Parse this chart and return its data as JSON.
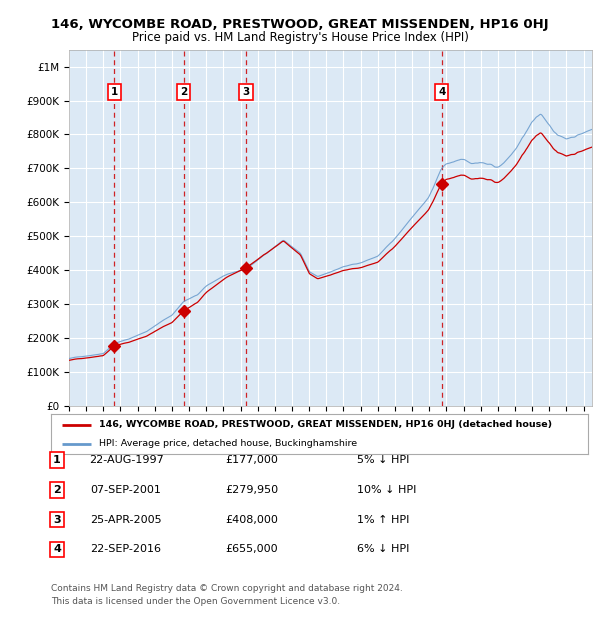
{
  "title": "146, WYCOMBE ROAD, PRESTWOOD, GREAT MISSENDEN, HP16 0HJ",
  "subtitle": "Price paid vs. HM Land Registry's House Price Index (HPI)",
  "ylabel_ticks": [
    "£0",
    "£100K",
    "£200K",
    "£300K",
    "£400K",
    "£500K",
    "£600K",
    "£700K",
    "£800K",
    "£900K",
    "£1M"
  ],
  "ytick_values": [
    0,
    100000,
    200000,
    300000,
    400000,
    500000,
    600000,
    700000,
    800000,
    900000,
    1000000
  ],
  "ylim": [
    0,
    1050000
  ],
  "xlim_start": 1995.0,
  "xlim_end": 2025.5,
  "background_color": "#dce9f5",
  "grid_color": "#ffffff",
  "sale_line_color": "#cc0000",
  "hpi_line_color": "#6699cc",
  "sale_dot_color": "#cc0000",
  "dashed_line_color": "#cc0000",
  "transactions": [
    {
      "num": 1,
      "date_str": "22-AUG-1997",
      "price": 177000,
      "year": 1997.64
    },
    {
      "num": 2,
      "date_str": "07-SEP-2001",
      "price": 279950,
      "year": 2001.68
    },
    {
      "num": 3,
      "date_str": "25-APR-2005",
      "price": 408000,
      "year": 2005.32
    },
    {
      "num": 4,
      "date_str": "22-SEP-2016",
      "price": 655000,
      "year": 2016.73
    }
  ],
  "legend_sale_label": "146, WYCOMBE ROAD, PRESTWOOD, GREAT MISSENDEN, HP16 0HJ (detached house)",
  "legend_hpi_label": "HPI: Average price, detached house, Buckinghamshire",
  "footer": "Contains HM Land Registry data © Crown copyright and database right 2024.\nThis data is licensed under the Open Government Licence v3.0.",
  "table_rows": [
    [
      "1",
      "22-AUG-1997",
      "£177,000",
      "5% ↓ HPI"
    ],
    [
      "2",
      "07-SEP-2001",
      "£279,950",
      "10% ↓ HPI"
    ],
    [
      "3",
      "25-APR-2005",
      "£408,000",
      "1% ↑ HPI"
    ],
    [
      "4",
      "22-SEP-2016",
      "£655,000",
      "6% ↓ HPI"
    ]
  ]
}
